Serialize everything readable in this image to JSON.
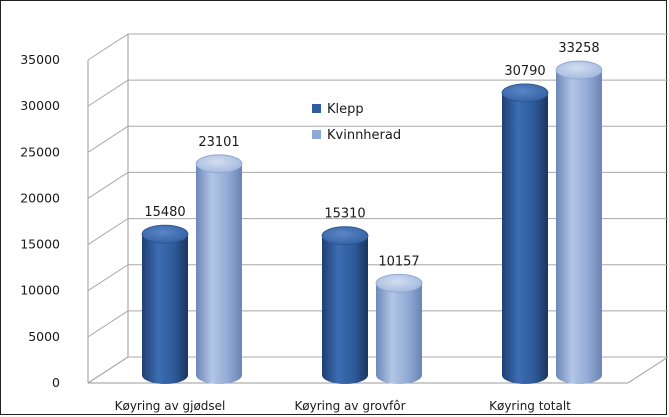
{
  "chart_data": {
    "type": "bar",
    "categories": [
      "Køyring av gjødsel",
      "Køyring av grovfôr",
      "Køyring totalt"
    ],
    "series": [
      {
        "name": "Klepp",
        "values": [
          15480,
          15310,
          30790
        ],
        "color": "#2f5d9e"
      },
      {
        "name": "Kvinnherad",
        "values": [
          23101,
          10157,
          33258
        ],
        "color": "#8fa9d6"
      }
    ],
    "y_ticks": [
      0,
      5000,
      10000,
      15000,
      20000,
      25000,
      30000,
      35000
    ],
    "ylim": [
      0,
      35000
    ],
    "grid": true,
    "legend_position": "top-center",
    "style": "3d-cylinder"
  }
}
